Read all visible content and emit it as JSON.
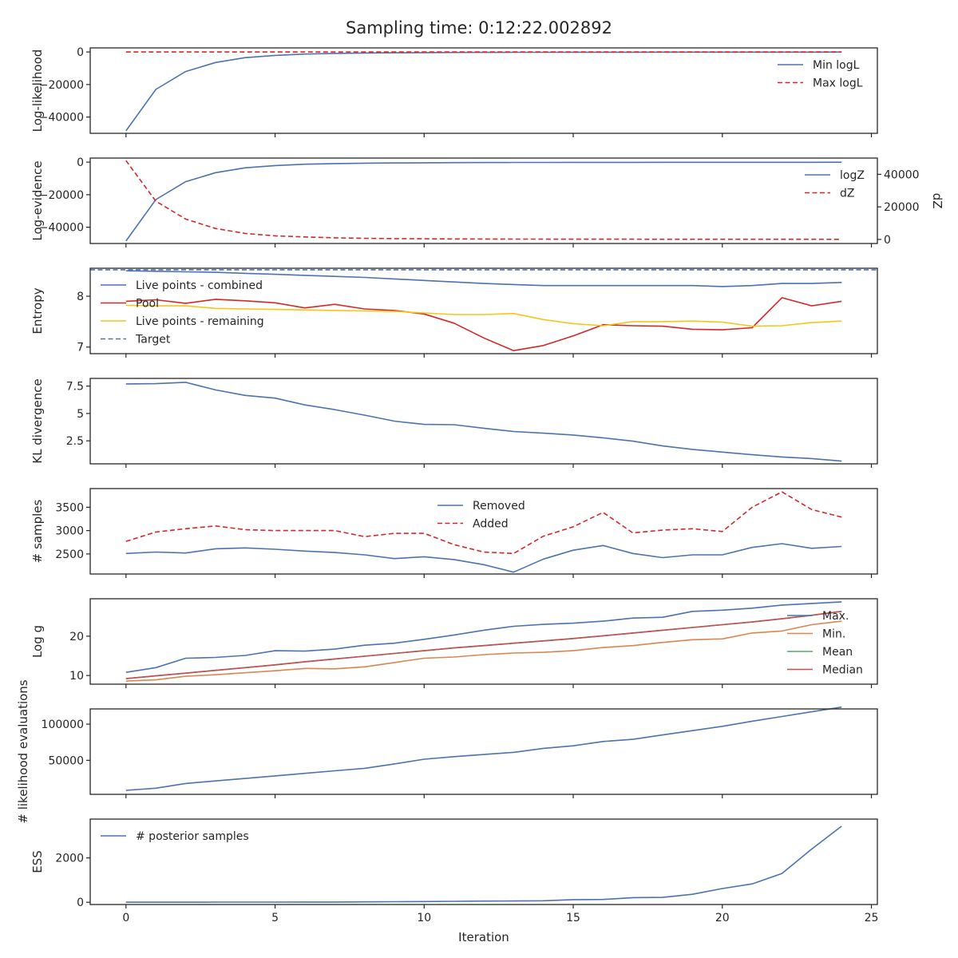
{
  "figure": {
    "title": "Sampling time: 0:12:22.002892",
    "xlabel": "Iteration",
    "xlim": [
      -1.2,
      25.2
    ],
    "xticks": [
      0,
      5,
      10,
      15,
      20,
      25
    ]
  },
  "chart_data": [
    {
      "type": "line",
      "ylabel": "Log-likelihood",
      "ylim": [
        -50000,
        2500
      ],
      "yticks": [
        0,
        -20000,
        -40000
      ],
      "legend_loc": "upper-right",
      "x": [
        0,
        1,
        2,
        3,
        4,
        5,
        6,
        7,
        8,
        9,
        10,
        11,
        12,
        13,
        14,
        15,
        16,
        17,
        18,
        19,
        20,
        21,
        22,
        23,
        24
      ],
      "series": [
        {
          "name": "Min logL",
          "color": "#4c72b0",
          "dash": "solid",
          "values": [
            -48500,
            -23000,
            -12000,
            -6500,
            -3500,
            -2100,
            -1300,
            -900,
            -650,
            -500,
            -400,
            -320,
            -260,
            -220,
            -190,
            -170,
            -150,
            -135,
            -120,
            -110,
            -100,
            -92,
            -85,
            -80,
            -75
          ]
        },
        {
          "name": "Max logL",
          "color": "#d62728",
          "dash": "dashed",
          "values": [
            -20,
            -20,
            -20,
            -20,
            -20,
            -20,
            -20,
            -20,
            -20,
            -20,
            -20,
            -20,
            -20,
            -20,
            -20,
            -20,
            -20,
            -20,
            -20,
            -20,
            -20,
            -20,
            -20,
            -20,
            -20
          ]
        }
      ]
    },
    {
      "type": "line",
      "ylabel": "Log-evidence",
      "y2label": "dZ",
      "ylim": [
        -50000,
        2500
      ],
      "yticks": [
        0,
        -20000,
        -40000
      ],
      "y2lim": [
        -2500,
        50000
      ],
      "y2ticks": [
        0,
        20000,
        40000
      ],
      "legend_loc": "upper-right",
      "x": [
        0,
        1,
        2,
        3,
        4,
        5,
        6,
        7,
        8,
        9,
        10,
        11,
        12,
        13,
        14,
        15,
        16,
        17,
        18,
        19,
        20,
        21,
        22,
        23,
        24
      ],
      "series": [
        {
          "name": "logZ",
          "color": "#4c72b0",
          "dash": "solid",
          "axis": "left",
          "values": [
            -48500,
            -23000,
            -12000,
            -6500,
            -3500,
            -2100,
            -1300,
            -900,
            -650,
            -500,
            -400,
            -320,
            -260,
            -220,
            -190,
            -170,
            -150,
            -135,
            -120,
            -110,
            -100,
            -92,
            -85,
            -80,
            -75
          ]
        },
        {
          "name": "dZ",
          "color": "#d62728",
          "dash": "dashed",
          "axis": "right",
          "values": [
            48500,
            23500,
            12500,
            6700,
            3700,
            2200,
            1500,
            1000,
            700,
            500,
            400,
            320,
            260,
            220,
            190,
            170,
            150,
            135,
            120,
            110,
            100,
            92,
            85,
            80,
            75
          ]
        }
      ]
    },
    {
      "type": "line",
      "ylabel": "Entropy",
      "ylim": [
        6.87,
        8.55
      ],
      "yticks": [
        7,
        8
      ],
      "legend_loc": "upper-left",
      "x": [
        0,
        1,
        2,
        3,
        4,
        5,
        6,
        7,
        8,
        9,
        10,
        11,
        12,
        13,
        14,
        15,
        16,
        17,
        18,
        19,
        20,
        21,
        22,
        23,
        24
      ],
      "series": [
        {
          "name": "Live points - combined",
          "color": "#4c72b0",
          "dash": "solid",
          "values": [
            8.5,
            8.49,
            8.48,
            8.47,
            8.45,
            8.43,
            8.41,
            8.39,
            8.37,
            8.34,
            8.31,
            8.28,
            8.25,
            8.23,
            8.21,
            8.21,
            8.21,
            8.21,
            8.21,
            8.21,
            8.19,
            8.21,
            8.25,
            8.25,
            8.27
          ]
        },
        {
          "name": "Pool",
          "color": "#d62728",
          "dash": "solid",
          "values": [
            7.9,
            7.93,
            7.86,
            7.94,
            7.91,
            7.87,
            7.77,
            7.84,
            7.75,
            7.72,
            7.65,
            7.47,
            7.18,
            6.93,
            7.03,
            7.22,
            7.44,
            7.42,
            7.41,
            7.35,
            7.34,
            7.38,
            7.97,
            7.81,
            7.9
          ]
        },
        {
          "name": "Live points - remaining",
          "color": "#f5c518",
          "dash": "solid",
          "values": [
            7.82,
            7.81,
            7.81,
            7.76,
            7.75,
            7.74,
            7.73,
            7.72,
            7.71,
            7.7,
            7.67,
            7.64,
            7.64,
            7.66,
            7.54,
            7.46,
            7.42,
            7.5,
            7.5,
            7.51,
            7.49,
            7.41,
            7.42,
            7.48,
            7.51
          ]
        },
        {
          "name": "Target",
          "color": "#4c72b0",
          "dash": "dashed",
          "values": [
            8.52,
            8.52,
            8.52,
            8.52,
            8.52,
            8.52,
            8.52,
            8.52,
            8.52,
            8.52,
            8.52,
            8.52,
            8.52,
            8.52,
            8.52,
            8.52,
            8.52,
            8.52,
            8.52,
            8.52,
            8.52,
            8.52,
            8.52,
            8.52,
            8.52
          ],
          "span": true
        }
      ]
    },
    {
      "type": "line",
      "ylabel": "KL divergence",
      "ylim": [
        0.4,
        8.2
      ],
      "yticks": [
        2.5,
        5.0,
        7.5
      ],
      "legend_loc": "none",
      "x": [
        0,
        1,
        2,
        3,
        4,
        5,
        6,
        7,
        8,
        9,
        10,
        11,
        12,
        13,
        14,
        15,
        16,
        17,
        18,
        19,
        20,
        21,
        22,
        23,
        24
      ],
      "series": [
        {
          "name": "",
          "color": "#4c72b0",
          "dash": "solid",
          "values": [
            7.7,
            7.72,
            7.84,
            7.15,
            6.65,
            6.4,
            5.78,
            5.35,
            4.85,
            4.3,
            4.0,
            3.97,
            3.65,
            3.35,
            3.2,
            3.03,
            2.78,
            2.47,
            2.03,
            1.72,
            1.47,
            1.23,
            1.03,
            0.88,
            0.65
          ]
        }
      ]
    },
    {
      "type": "line",
      "ylabel": "# samples",
      "ylim": [
        2070,
        3900
      ],
      "yticks": [
        2500,
        3000,
        3500
      ],
      "legend_loc": "upper-center",
      "x": [
        0,
        1,
        2,
        3,
        4,
        5,
        6,
        7,
        8,
        9,
        10,
        11,
        12,
        13,
        14,
        15,
        16,
        17,
        18,
        19,
        20,
        21,
        22,
        23,
        24
      ],
      "series": [
        {
          "name": "Removed",
          "color": "#4c72b0",
          "dash": "solid",
          "values": [
            2510,
            2540,
            2520,
            2610,
            2630,
            2600,
            2560,
            2530,
            2480,
            2400,
            2440,
            2380,
            2270,
            2110,
            2390,
            2580,
            2680,
            2510,
            2420,
            2480,
            2480,
            2640,
            2720,
            2620,
            2660
          ]
        },
        {
          "name": "Added",
          "color": "#d62728",
          "dash": "dashed",
          "values": [
            2770,
            2970,
            3040,
            3100,
            3020,
            3000,
            3000,
            3000,
            2870,
            2940,
            2940,
            2700,
            2540,
            2510,
            2880,
            3080,
            3390,
            2950,
            3010,
            3040,
            2980,
            3500,
            3830,
            3450,
            3290
          ]
        }
      ]
    },
    {
      "type": "line",
      "ylabel": "Log g",
      "ylim": [
        7.8,
        29.5
      ],
      "yticks": [
        10,
        20
      ],
      "legend_loc": "right",
      "x": [
        0,
        1,
        2,
        3,
        4,
        5,
        6,
        7,
        8,
        9,
        10,
        11,
        12,
        13,
        14,
        15,
        16,
        17,
        18,
        19,
        20,
        21,
        22,
        23,
        24
      ],
      "series": [
        {
          "name": "Max.",
          "color": "#4c72b0",
          "dash": "solid",
          "values": [
            10.8,
            12,
            14.4,
            14.6,
            15.1,
            16.3,
            16.2,
            16.7,
            17.7,
            18.2,
            19.2,
            20.3,
            21.5,
            22.5,
            23,
            23.3,
            23.8,
            24.6,
            24.8,
            26.3,
            26.6,
            27.1,
            27.9,
            28.3,
            28.7
          ]
        },
        {
          "name": "Min.",
          "color": "#dd8452",
          "dash": "solid",
          "values": [
            8.6,
            8.9,
            9.8,
            10.2,
            10.7,
            11.2,
            11.8,
            11.7,
            12.2,
            13.3,
            14.4,
            14.7,
            15.3,
            15.7,
            15.9,
            16.3,
            17.1,
            17.6,
            18.4,
            19.1,
            19.3,
            20.8,
            21.3,
            22.9,
            23.8
          ]
        },
        {
          "name": "Mean",
          "color": "#55a868",
          "dash": "solid",
          "values": [
            9.2,
            9.9,
            10.6,
            11.3,
            12,
            12.7,
            13.5,
            14.2,
            14.9,
            15.6,
            16.3,
            17,
            17.6,
            18.2,
            18.8,
            19.4,
            20.1,
            20.8,
            21.5,
            22.2,
            22.9,
            23.6,
            24.4,
            25.3,
            26.3
          ]
        },
        {
          "name": "Median",
          "color": "#c44e52",
          "dash": "solid",
          "values": [
            9.2,
            9.9,
            10.6,
            11.3,
            12,
            12.7,
            13.5,
            14.2,
            14.9,
            15.6,
            16.3,
            17,
            17.6,
            18.2,
            18.8,
            19.4,
            20.1,
            20.8,
            21.5,
            22.2,
            22.9,
            23.6,
            24.4,
            25.3,
            26.3
          ]
        }
      ]
    },
    {
      "type": "line",
      "ylabel": "# likelihood evaluations",
      "ylim": [
        3000,
        121000
      ],
      "yticks": [
        50000,
        100000
      ],
      "legend_loc": "none",
      "x": [
        0,
        1,
        2,
        3,
        4,
        5,
        6,
        7,
        8,
        9,
        10,
        11,
        12,
        13,
        14,
        15,
        16,
        17,
        18,
        19,
        20,
        21,
        22,
        23,
        24
      ],
      "series": [
        {
          "name": "",
          "color": "#4c72b0",
          "dash": "solid",
          "values": [
            8500,
            11500,
            18000,
            21500,
            25000,
            28500,
            32000,
            35500,
            39000,
            45000,
            51500,
            55000,
            58000,
            61000,
            66500,
            70000,
            76000,
            79000,
            85000,
            91000,
            97000,
            104000,
            110500,
            117000,
            123500
          ]
        }
      ]
    },
    {
      "type": "line",
      "ylabel": "ESS",
      "ylim": [
        -100,
        3750
      ],
      "yticks": [
        0,
        2000
      ],
      "legend_loc": "upper-left",
      "x": [
        0,
        1,
        2,
        3,
        4,
        5,
        6,
        7,
        8,
        9,
        10,
        11,
        12,
        13,
        14,
        15,
        16,
        17,
        18,
        19,
        20,
        21,
        22,
        23,
        24
      ],
      "series": [
        {
          "name": "# posterior samples",
          "color": "#4c72b0",
          "dash": "solid",
          "values": [
            5,
            5,
            6,
            7,
            8,
            9,
            10,
            13,
            17,
            25,
            32,
            45,
            55,
            60,
            70,
            120,
            125,
            210,
            220,
            360,
            620,
            830,
            1300,
            2400,
            3430
          ]
        }
      ]
    }
  ]
}
